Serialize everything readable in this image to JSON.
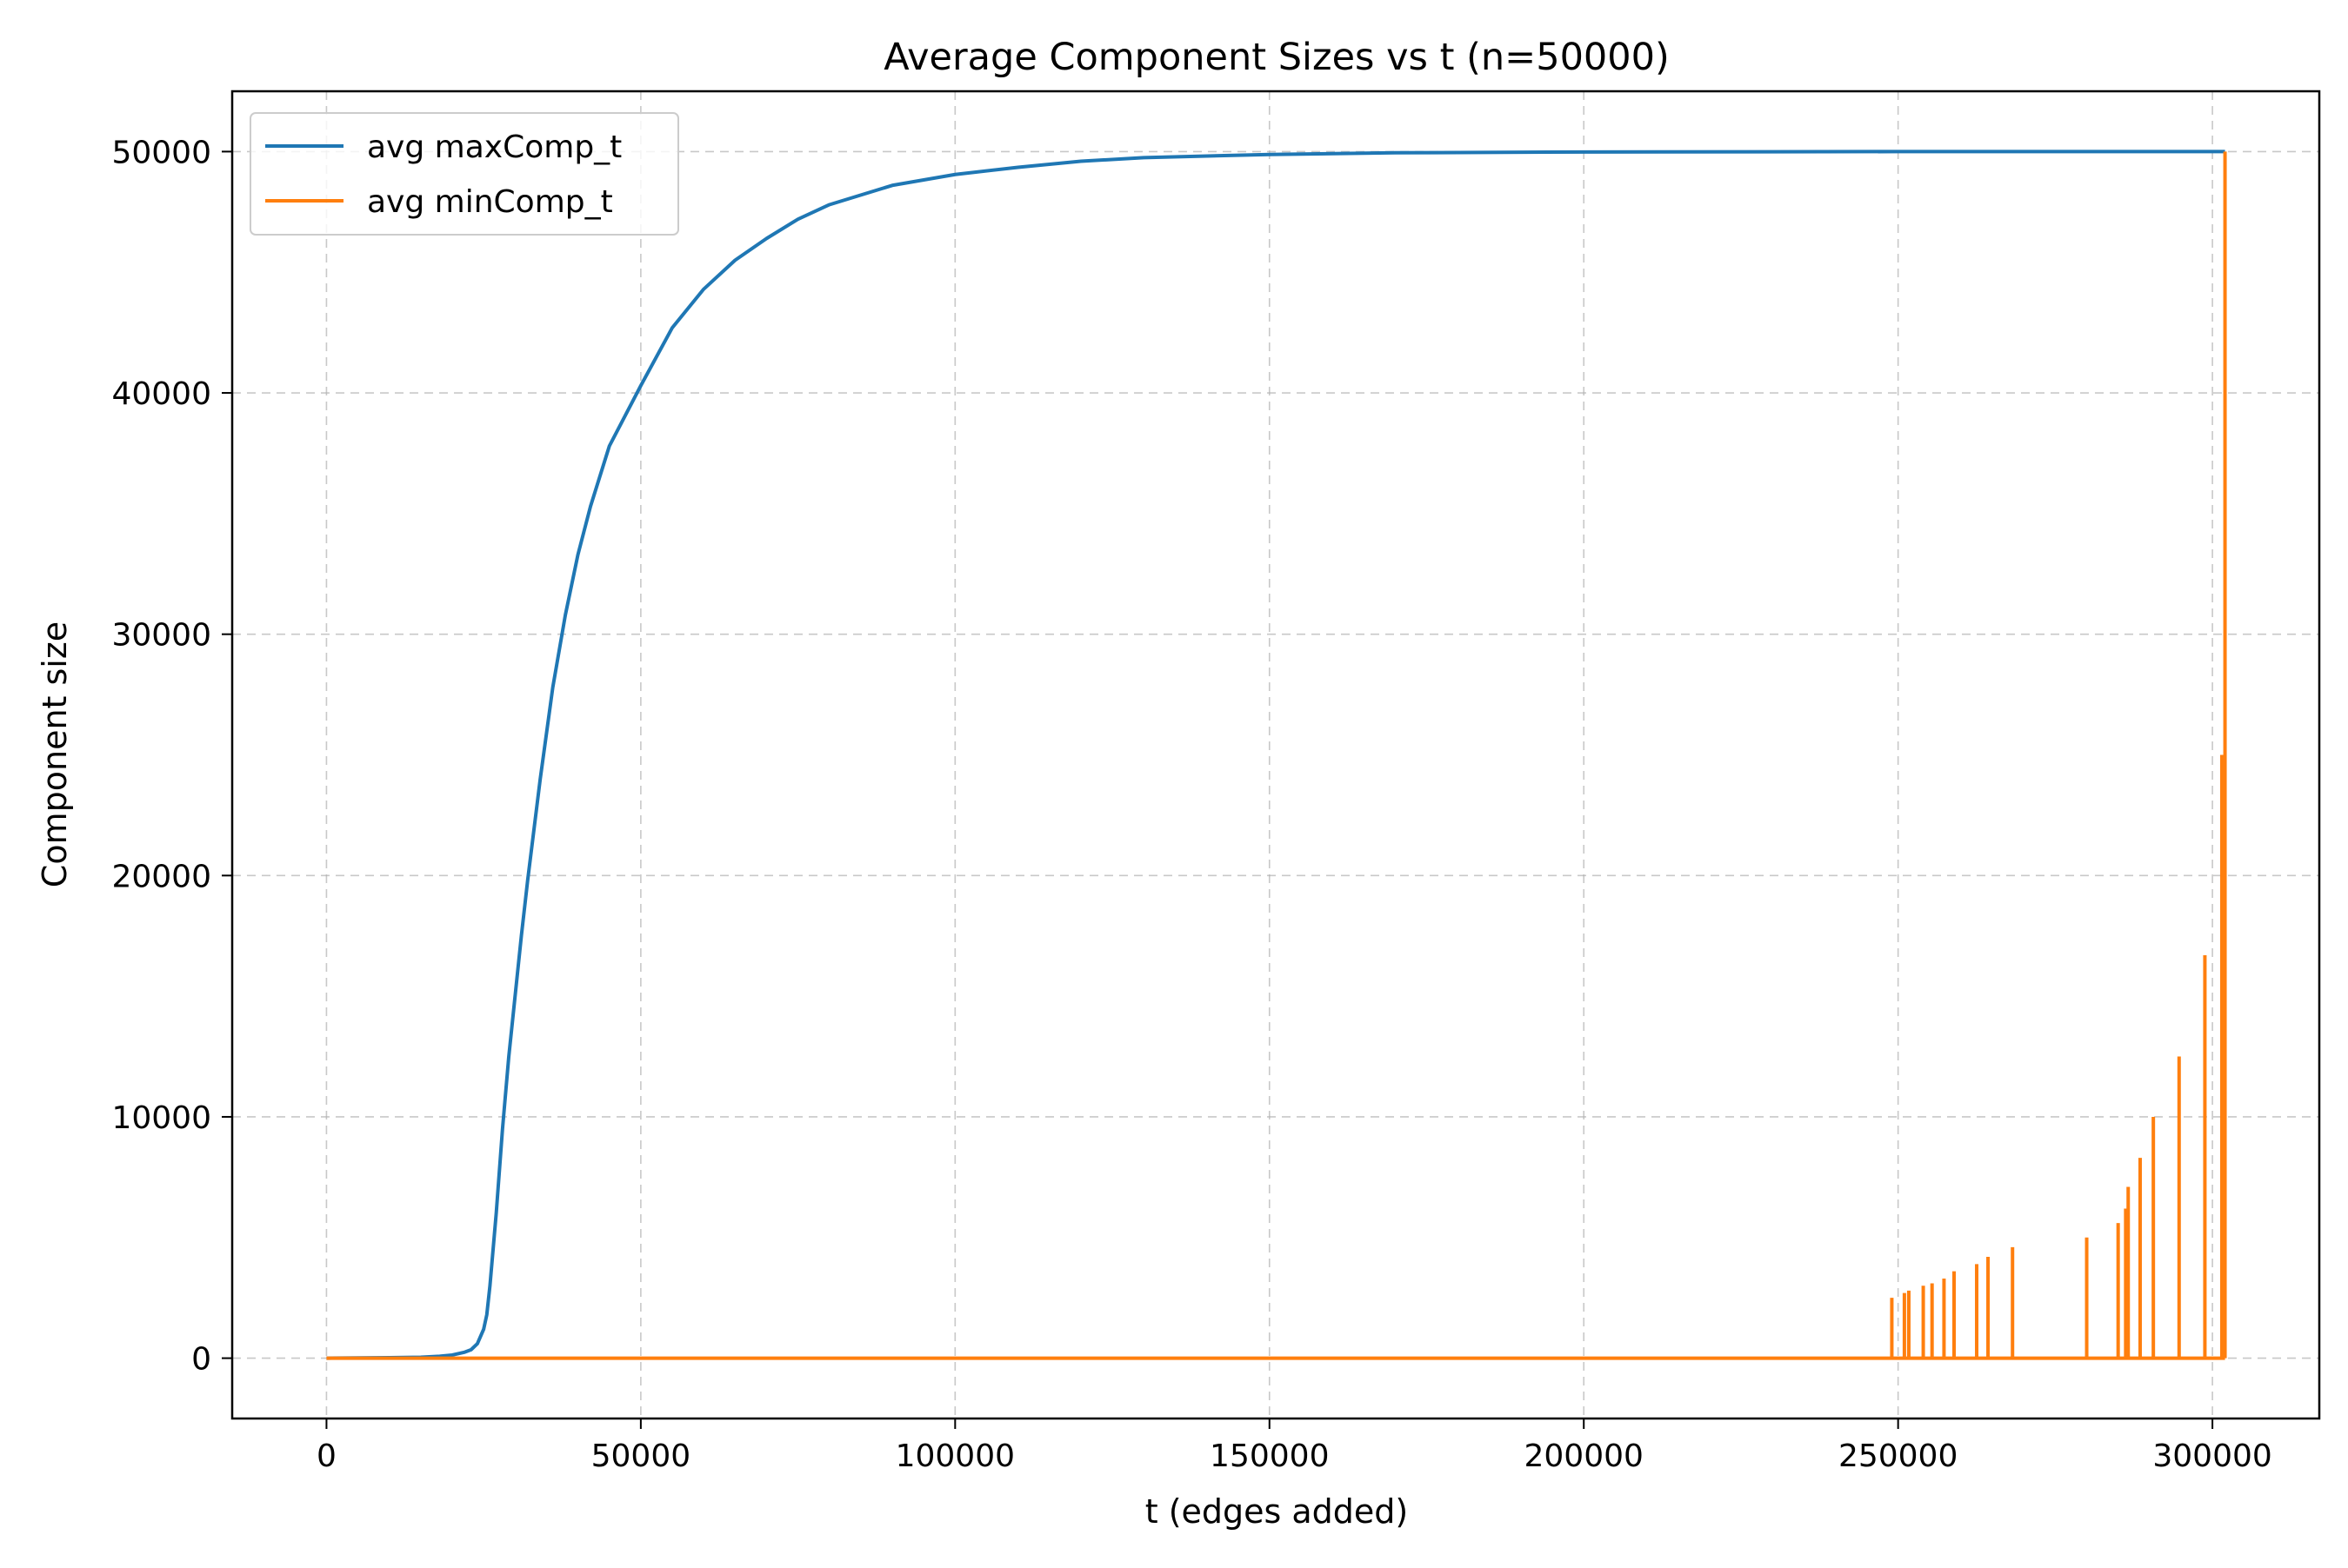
{
  "chart_data": {
    "type": "line",
    "title": "Average Component Sizes vs t (n=50000)",
    "xlabel": "t (edges added)",
    "ylabel": "Component size",
    "xlim": [
      -15000,
      317000
    ],
    "ylim": [
      -2500,
      52500
    ],
    "xticks": [
      0,
      50000,
      100000,
      150000,
      200000,
      250000,
      300000
    ],
    "yticks": [
      0,
      10000,
      20000,
      30000,
      40000,
      50000
    ],
    "grid": true,
    "grid_style": "dashed",
    "legend_position": "upper-left",
    "series": [
      {
        "name": "avg maxComp_t",
        "color": "#1f77b4",
        "points": [
          [
            0,
            0
          ],
          [
            10000,
            20
          ],
          [
            15000,
            40
          ],
          [
            18000,
            80
          ],
          [
            20000,
            130
          ],
          [
            22000,
            250
          ],
          [
            23000,
            350
          ],
          [
            24000,
            600
          ],
          [
            25000,
            1200
          ],
          [
            25500,
            1800
          ],
          [
            26000,
            3000
          ],
          [
            26500,
            4500
          ],
          [
            27000,
            6000
          ],
          [
            28000,
            9500
          ],
          [
            29000,
            12500
          ],
          [
            30000,
            15000
          ],
          [
            31000,
            17500
          ],
          [
            32000,
            19800
          ],
          [
            34000,
            24000
          ],
          [
            36000,
            27800
          ],
          [
            38000,
            30800
          ],
          [
            40000,
            33300
          ],
          [
            42000,
            35300
          ],
          [
            45000,
            37800
          ],
          [
            50000,
            40300
          ],
          [
            55000,
            42700
          ],
          [
            60000,
            44300
          ],
          [
            65000,
            45500
          ],
          [
            70000,
            46400
          ],
          [
            75000,
            47200
          ],
          [
            80000,
            47800
          ],
          [
            90000,
            48600
          ],
          [
            100000,
            49050
          ],
          [
            110000,
            49350
          ],
          [
            120000,
            49600
          ],
          [
            130000,
            49750
          ],
          [
            150000,
            49880
          ],
          [
            170000,
            49950
          ],
          [
            200000,
            49985
          ],
          [
            250000,
            50000
          ],
          [
            302000,
            50000
          ]
        ]
      },
      {
        "name": "avg minComp_t",
        "color": "#ff7f0e",
        "baseline_end": 302000,
        "final_rise": [
          302000,
          50000
        ],
        "spikes": [
          [
            249000,
            2500
          ],
          [
            251000,
            2700
          ],
          [
            251700,
            2800
          ],
          [
            254000,
            3000
          ],
          [
            255400,
            3100
          ],
          [
            257300,
            3300
          ],
          [
            258900,
            3600
          ],
          [
            262500,
            3900
          ],
          [
            264300,
            4200
          ],
          [
            268200,
            4600
          ],
          [
            280000,
            5000
          ],
          [
            285000,
            5600
          ],
          [
            286200,
            6200
          ],
          [
            286600,
            7100
          ],
          [
            288500,
            8300
          ],
          [
            290600,
            10000
          ],
          [
            294700,
            12500
          ],
          [
            298800,
            16700
          ],
          [
            301500,
            25000
          ]
        ]
      }
    ]
  }
}
